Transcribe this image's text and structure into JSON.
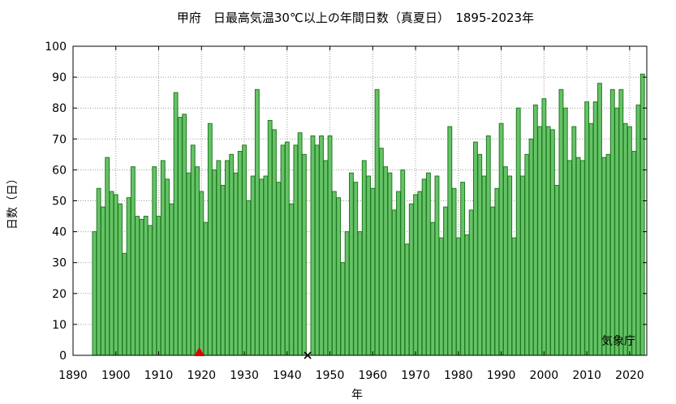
{
  "chart_data": {
    "type": "bar",
    "title": "甲府　日最高気温30℃以上の年間日数（真夏日）　1895-2023年",
    "xlabel": "年",
    "ylabel": "日数（日）",
    "xlim": [
      1890,
      2024
    ],
    "ylim": [
      0,
      100
    ],
    "x_ticks": [
      1890,
      1900,
      1910,
      1920,
      1930,
      1940,
      1950,
      1960,
      1970,
      1980,
      1990,
      2000,
      2010,
      2020
    ],
    "y_ticks": [
      0,
      10,
      20,
      30,
      40,
      50,
      60,
      70,
      80,
      90,
      100
    ],
    "grid": true,
    "bar_color": "#66c266",
    "bar_edge_color": "#1f7a1f",
    "series": [
      {
        "x": [
          1895,
          1896,
          1897,
          1898,
          1899,
          1900,
          1901,
          1902,
          1903,
          1904,
          1905,
          1906,
          1907,
          1908,
          1909,
          1910,
          1911,
          1912,
          1913,
          1914,
          1915,
          1916,
          1917,
          1918,
          1919,
          1920,
          1921,
          1922,
          1923,
          1924,
          1925,
          1926,
          1927,
          1928,
          1929,
          1930,
          1931,
          1932,
          1933,
          1934,
          1935,
          1936,
          1937,
          1938,
          1939,
          1940,
          1941,
          1942,
          1943,
          1944,
          1946,
          1947,
          1948,
          1949,
          1950,
          1951,
          1952,
          1953,
          1954,
          1955,
          1956,
          1957,
          1958,
          1959,
          1960,
          1961,
          1962,
          1963,
          1964,
          1965,
          1966,
          1967,
          1968,
          1969,
          1970,
          1971,
          1972,
          1973,
          1974,
          1975,
          1976,
          1977,
          1978,
          1979,
          1980,
          1981,
          1982,
          1983,
          1984,
          1985,
          1986,
          1987,
          1988,
          1989,
          1990,
          1991,
          1992,
          1993,
          1994,
          1995,
          1996,
          1997,
          1998,
          1999,
          2000,
          2001,
          2002,
          2003,
          2004,
          2005,
          2006,
          2007,
          2008,
          2009,
          2010,
          2011,
          2012,
          2013,
          2014,
          2015,
          2016,
          2017,
          2018,
          2019,
          2020,
          2021,
          2022,
          2023
        ],
        "values": [
          40,
          54,
          48,
          64,
          53,
          52,
          49,
          33,
          51,
          61,
          45,
          44,
          45,
          42,
          61,
          45,
          63,
          57,
          49,
          85,
          77,
          78,
          59,
          68,
          61,
          53,
          43,
          75,
          60,
          63,
          55,
          63,
          65,
          59,
          66,
          68,
          50,
          58,
          86,
          57,
          58,
          76,
          73,
          56,
          68,
          69,
          49,
          68,
          72,
          65,
          71,
          68,
          71,
          63,
          71,
          53,
          51,
          30,
          40,
          59,
          56,
          40,
          63,
          58,
          54,
          86,
          67,
          61,
          59,
          47,
          53,
          60,
          36,
          49,
          52,
          53,
          57,
          59,
          43,
          58,
          38,
          48,
          74,
          54,
          38,
          56,
          39,
          47,
          69,
          65,
          58,
          71,
          48,
          54,
          75,
          61,
          58,
          38,
          80,
          58,
          65,
          70,
          81,
          74,
          83,
          74,
          73,
          55,
          86,
          80,
          63,
          74,
          64,
          63,
          82,
          75,
          82,
          88,
          64,
          65,
          86,
          80,
          86,
          75,
          74,
          66,
          81,
          91
        ]
      }
    ],
    "markers": [
      {
        "x": 1919.5,
        "y": 0,
        "symbol": "triangle",
        "color": "#e00000"
      },
      {
        "x": 1944.8,
        "y": 0,
        "symbol": "cross",
        "color": "#000000"
      }
    ]
  },
  "credit": "気象庁"
}
